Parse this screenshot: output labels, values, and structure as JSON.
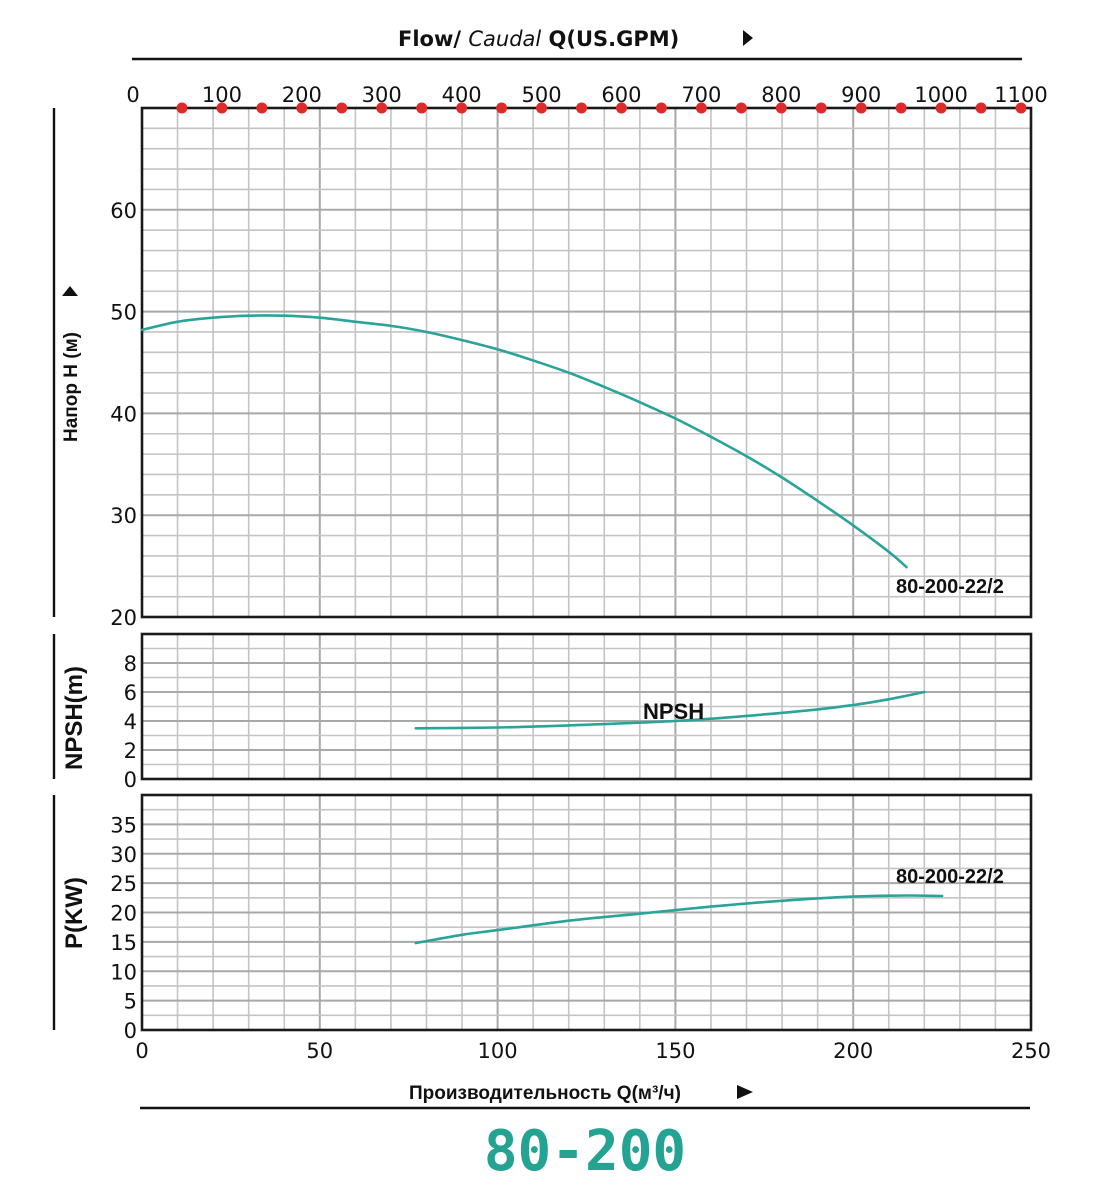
{
  "colors": {
    "curve": "#2aa399",
    "marker": "#e02a2a",
    "model": "#24a393",
    "text": "#111111"
  },
  "header": {
    "flow_prefix": "Flow/ ",
    "flow_italic": "Caudal",
    "flow_suffix": " Q(US.GPM)",
    "arrow_icon": "triangle-right"
  },
  "footer": {
    "xlabel": "Производительность Q(м³/ч)",
    "arrow_icon": "triangle-right",
    "model": "80-200"
  },
  "chart_data": [
    {
      "type": "line",
      "name": "head",
      "title": "Flow/ Caudal Q(US.GPM)",
      "ylabel": "Напор H (м)",
      "xlabel": "Производительность Q(м³/ч)",
      "xlim": [
        0,
        250
      ],
      "ylim": [
        20,
        70
      ],
      "yticks": [
        20,
        30,
        40,
        50,
        60
      ],
      "grid": true,
      "secondary_x_axis": {
        "label": "Flow/ Caudal Q(US.GPM)",
        "ticks": [
          0,
          100,
          200,
          300,
          400,
          500,
          600,
          700,
          800,
          900,
          1000,
          1100
        ],
        "markers": [
          50,
          100,
          150,
          200,
          250,
          300,
          350,
          400,
          450,
          500,
          550,
          600,
          650,
          700,
          750,
          800,
          850,
          900,
          950,
          1000,
          1050,
          1100
        ]
      },
      "series": [
        {
          "name": "80-200-22/2",
          "x": [
            0,
            10,
            20,
            30,
            40,
            50,
            60,
            70,
            80,
            90,
            100,
            110,
            120,
            130,
            140,
            150,
            160,
            170,
            180,
            190,
            200,
            210,
            215
          ],
          "y": [
            48.2,
            49.0,
            49.4,
            49.6,
            49.6,
            49.4,
            49.0,
            48.6,
            48.0,
            47.2,
            46.3,
            45.2,
            44.0,
            42.6,
            41.1,
            39.5,
            37.7,
            35.8,
            33.7,
            31.4,
            29.0,
            26.4,
            24.9
          ]
        }
      ],
      "annotations": [
        "80-200-22/2"
      ]
    },
    {
      "type": "line",
      "name": "npsh",
      "ylabel": "NPSH(m)",
      "xlim": [
        0,
        250
      ],
      "ylim": [
        0,
        10
      ],
      "yticks": [
        0,
        2,
        4,
        6,
        8
      ],
      "grid": true,
      "series": [
        {
          "name": "NPSH",
          "x": [
            77,
            100,
            120,
            150,
            170,
            190,
            200,
            210,
            220
          ],
          "y": [
            3.5,
            3.55,
            3.7,
            4.0,
            4.35,
            4.8,
            5.1,
            5.5,
            6.0
          ]
        }
      ],
      "annotations": [
        "NPSH"
      ]
    },
    {
      "type": "line",
      "name": "power",
      "ylabel": "P(KW)",
      "xlabel": "Производительность Q(м³/ч)",
      "xlim": [
        0,
        250
      ],
      "ylim": [
        0,
        40
      ],
      "yticks": [
        0,
        5,
        10,
        15,
        20,
        25,
        30,
        35
      ],
      "xticks": [
        0,
        50,
        100,
        150,
        200,
        250
      ],
      "grid": true,
      "series": [
        {
          "name": "80-200-22/2",
          "x": [
            77,
            90,
            100,
            120,
            140,
            160,
            180,
            200,
            215,
            225
          ],
          "y": [
            14.8,
            16.2,
            17.0,
            18.6,
            19.8,
            21.0,
            22.0,
            22.7,
            22.9,
            22.8
          ]
        }
      ],
      "annotations": [
        "80-200-22/2"
      ]
    }
  ]
}
